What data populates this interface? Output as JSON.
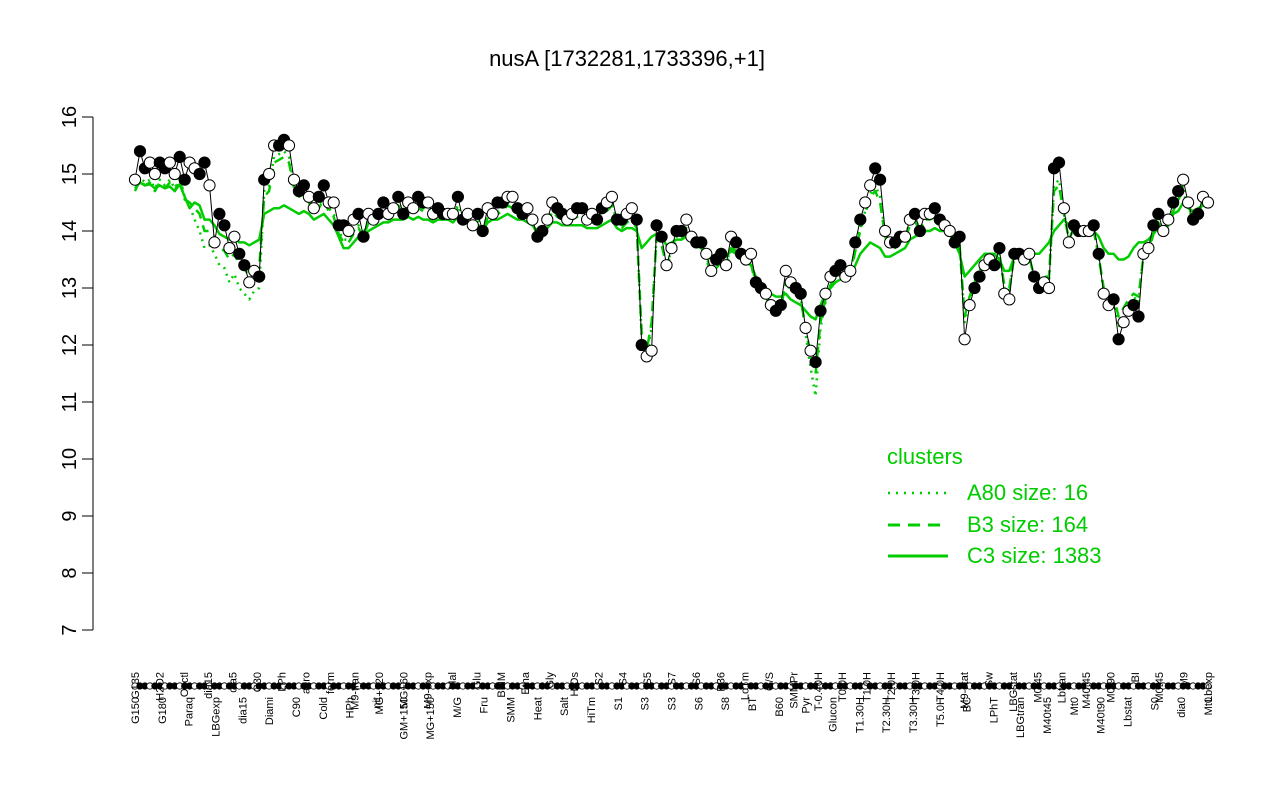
{
  "chart_data": {
    "type": "line",
    "title": "nusA [1732281,1733396,+1]",
    "xlabel": "",
    "ylabel": "",
    "ylim": [
      7,
      16
    ],
    "yticks": [
      7,
      8,
      9,
      10,
      11,
      12,
      13,
      14,
      15,
      16
    ],
    "grid": false,
    "legend": {
      "position": "right",
      "title": "clusters",
      "entries": [
        {
          "label": "A80 size: 16",
          "style": "dotted",
          "color": "#00cc00"
        },
        {
          "label": "B3 size: 164",
          "style": "dashed",
          "color": "#00cc00"
        },
        {
          "label": "C3 size: 1383",
          "style": "solid",
          "color": "#00cc00"
        }
      ]
    },
    "x_labels_bottom": [
      "G150",
      "G180",
      "Paraq",
      "LBGexp",
      "dia15",
      "Diami",
      "C90",
      "Cold",
      "HPh",
      "nit",
      "GM+150",
      "MG+150",
      "M/G",
      "Fru",
      "SMM",
      "Heat",
      "Salt",
      "HiTm",
      "S1",
      "S3",
      "S3",
      "S6",
      "S8",
      "BT",
      "B60",
      "Pyr",
      "Glucon",
      "T1.30H",
      "T2.30H",
      "T3.30H",
      "T5.0H",
      "BC",
      "LPhT",
      "LBGtran",
      "M40t45",
      "Mt0",
      "M40t90",
      "Lbstat",
      "S0",
      "dia0",
      "Mt0"
    ],
    "x_labels_top": [
      "G135",
      "H2O2",
      "Oxctl",
      "dia15",
      "dia5",
      "C30",
      "LPh",
      "aero",
      "ferm",
      "M9-tran",
      "MG+120",
      "MG+60",
      "M9-exp",
      "Mal",
      "Glu",
      "BMM",
      "Etha",
      "Gly",
      "HiOs",
      "S2",
      "S4",
      "S5",
      "S7",
      "S6",
      "B36",
      "LoTm",
      "G/S",
      "SMMPr",
      "T-0.40H",
      "T0.0H",
      "T1.0H",
      "T2.0H",
      "T3.0H",
      "T4.0H",
      "M9-stat",
      "Sw",
      "LBGstat",
      "M0t45",
      "Lbtran",
      "M40t45",
      "M0t90",
      "BI",
      "M0t45",
      "M9",
      "Lbexp"
    ],
    "series": [
      {
        "role": "observed",
        "color": "#000000",
        "values": [
          14.9,
          15.4,
          15.1,
          15.2,
          15.0,
          15.2,
          15.1,
          15.2,
          15.0,
          15.3,
          14.9,
          15.2,
          15.1,
          15.0,
          15.2,
          14.8,
          13.8,
          14.3,
          14.1,
          13.7,
          13.9,
          13.6,
          13.4,
          13.1,
          13.3,
          13.2,
          14.9,
          15.0,
          15.5,
          15.5,
          15.6,
          15.5,
          14.9,
          14.7,
          14.8,
          14.6,
          14.4,
          14.6,
          14.8,
          14.5,
          14.5,
          14.1,
          14.1,
          14.0,
          14.2,
          14.3,
          13.9,
          14.3,
          14.2,
          14.3,
          14.5,
          14.3,
          14.4,
          14.6,
          14.3,
          14.5,
          14.4,
          14.6,
          14.5,
          14.5,
          14.3,
          14.4,
          14.3,
          14.3,
          14.3,
          14.6,
          14.2,
          14.3,
          14.1,
          14.3,
          14.0,
          14.4,
          14.3,
          14.5,
          14.5,
          14.6,
          14.6,
          14.4,
          14.3,
          14.4,
          14.2,
          13.9,
          14.0,
          14.2,
          14.5,
          14.4,
          14.3,
          14.2,
          14.3,
          14.4,
          14.4,
          14.2,
          14.3,
          14.2,
          14.4,
          14.5,
          14.6,
          14.2,
          14.2,
          14.3,
          14.4,
          14.2,
          12.0,
          11.8,
          11.9,
          14.1,
          13.9,
          13.4,
          13.7,
          14.0,
          14.0,
          14.2,
          13.9,
          13.8,
          13.8,
          13.6,
          13.3,
          13.5,
          13.6,
          13.4,
          13.9,
          13.8,
          13.6,
          13.5,
          13.6,
          13.1,
          13.0,
          12.9,
          12.7,
          12.6,
          12.7,
          13.3,
          13.1,
          13.0,
          12.9,
          12.3,
          11.9,
          11.7,
          12.6,
          12.9,
          13.2,
          13.3,
          13.4,
          13.2,
          13.3,
          13.8,
          14.2,
          14.5,
          14.8,
          15.1,
          14.9,
          14.0,
          13.8,
          13.8,
          13.9,
          13.9,
          14.2,
          14.3,
          14.0,
          14.3,
          14.3,
          14.4,
          14.2,
          14.1,
          14.0,
          13.8,
          13.9,
          12.1,
          12.7,
          13.0,
          13.2,
          13.4,
          13.5,
          13.4,
          13.7,
          12.9,
          12.8,
          13.6,
          13.6,
          13.5,
          13.6,
          13.2,
          13.0,
          13.1,
          13.0,
          15.1,
          15.2,
          14.4,
          13.8,
          14.1,
          14.0,
          14.0,
          14.0,
          14.1,
          13.6,
          12.9,
          12.7,
          12.8,
          12.1,
          12.4,
          12.6,
          12.7,
          12.5,
          13.6,
          13.7,
          14.1,
          14.3,
          14.0,
          14.2,
          14.5,
          14.7,
          14.9,
          14.5,
          14.2,
          14.3,
          14.6,
          14.5
        ]
      },
      {
        "role": "C3",
        "style": "solid",
        "color": "#00cc00",
        "values": [
          14.75,
          14.85,
          14.8,
          14.82,
          14.75,
          14.8,
          14.75,
          14.78,
          14.7,
          14.82,
          14.6,
          14.4,
          14.5,
          14.45,
          14.2,
          14.2,
          14.1,
          13.95,
          13.9,
          13.85,
          13.9,
          13.8,
          13.8,
          13.75,
          13.8,
          13.85,
          14.3,
          14.35,
          14.4,
          14.4,
          14.45,
          14.4,
          14.35,
          14.3,
          14.35,
          14.3,
          14.2,
          14.25,
          14.3,
          14.2,
          14.1,
          13.9,
          13.7,
          13.7,
          13.8,
          13.9,
          13.9,
          14.0,
          14.05,
          14.1,
          14.15,
          14.15,
          14.2,
          14.2,
          14.2,
          14.25,
          14.2,
          14.25,
          14.2,
          14.2,
          14.15,
          14.2,
          14.2,
          14.2,
          14.15,
          14.25,
          14.15,
          14.15,
          14.1,
          14.1,
          14.0,
          14.15,
          14.2,
          14.2,
          14.25,
          14.3,
          14.25,
          14.2,
          14.2,
          14.15,
          14.1,
          14.0,
          14.0,
          14.05,
          14.15,
          14.15,
          14.1,
          14.1,
          14.1,
          14.1,
          14.1,
          14.05,
          14.05,
          14.05,
          14.1,
          14.15,
          14.2,
          14.05,
          14.0,
          14.05,
          14.05,
          14.0,
          13.7,
          13.8,
          13.9,
          13.95,
          13.9,
          13.75,
          13.8,
          13.85,
          13.85,
          13.9,
          13.8,
          13.75,
          13.7,
          13.6,
          13.5,
          13.55,
          13.6,
          13.55,
          13.65,
          13.6,
          13.5,
          13.45,
          13.4,
          13.2,
          13.1,
          13.0,
          12.9,
          12.85,
          12.85,
          12.9,
          12.8,
          12.75,
          12.7,
          12.6,
          12.5,
          12.45,
          12.7,
          12.9,
          13.0,
          13.1,
          13.15,
          13.15,
          13.2,
          13.4,
          13.6,
          13.7,
          13.8,
          13.75,
          13.7,
          13.55,
          13.55,
          13.6,
          13.65,
          13.7,
          13.85,
          13.9,
          13.95,
          14.0,
          14.0,
          14.05,
          14.0,
          14.0,
          13.95,
          13.8,
          13.6,
          13.2,
          13.3,
          13.4,
          13.5,
          13.6,
          13.6,
          13.6,
          13.5,
          13.3,
          13.3,
          13.55,
          13.6,
          13.6,
          13.65,
          13.6,
          13.6,
          13.7,
          13.8,
          14.0,
          14.1,
          14.2,
          14.1,
          14.05,
          14.0,
          14.0,
          13.95,
          14.0,
          13.9,
          13.7,
          13.6,
          13.6,
          13.5,
          13.5,
          13.55,
          13.7,
          13.8,
          13.8,
          13.85,
          13.95,
          14.05,
          14.0,
          14.1,
          14.3,
          14.35,
          14.5,
          14.4,
          14.35,
          14.4,
          14.45,
          14.45
        ]
      },
      {
        "role": "B3",
        "style": "dashed",
        "color": "#00cc00",
        "values": [
          14.7,
          14.9,
          14.8,
          14.85,
          14.7,
          14.85,
          14.75,
          14.85,
          14.7,
          14.9,
          14.55,
          14.5,
          14.4,
          14.3,
          14.0,
          14.0,
          13.9,
          13.7,
          13.65,
          13.5,
          13.6,
          13.4,
          13.35,
          13.2,
          13.3,
          13.35,
          14.6,
          14.7,
          15.2,
          15.25,
          15.3,
          15.2,
          14.75,
          14.6,
          14.65,
          14.5,
          14.3,
          14.4,
          14.55,
          14.35,
          14.25,
          13.95,
          13.8,
          13.8,
          13.95,
          14.05,
          13.9,
          14.15,
          14.15,
          14.2,
          14.35,
          14.2,
          14.3,
          14.45,
          14.25,
          14.35,
          14.3,
          14.4,
          14.35,
          14.35,
          14.2,
          14.3,
          14.25,
          14.25,
          14.2,
          14.4,
          14.15,
          14.2,
          14.05,
          14.15,
          13.95,
          14.25,
          14.2,
          14.3,
          14.35,
          14.45,
          14.4,
          14.3,
          14.25,
          14.25,
          14.15,
          13.9,
          13.95,
          14.1,
          14.35,
          14.25,
          14.2,
          14.15,
          14.2,
          14.25,
          14.3,
          14.15,
          14.2,
          14.15,
          14.3,
          14.35,
          14.45,
          14.1,
          14.05,
          14.15,
          14.2,
          14.05,
          12.2,
          11.9,
          12.4,
          13.9,
          13.75,
          13.4,
          13.6,
          13.85,
          13.85,
          14.0,
          13.8,
          13.75,
          13.7,
          13.5,
          13.25,
          13.35,
          13.45,
          13.35,
          13.7,
          13.65,
          13.5,
          13.4,
          13.45,
          13.0,
          12.95,
          12.85,
          12.65,
          12.6,
          12.65,
          13.1,
          12.95,
          12.9,
          12.8,
          12.3,
          11.8,
          11.5,
          12.4,
          12.8,
          13.05,
          13.15,
          13.25,
          13.15,
          13.2,
          13.65,
          14.0,
          14.3,
          14.6,
          14.7,
          14.5,
          13.9,
          13.7,
          13.7,
          13.8,
          13.85,
          14.1,
          14.2,
          13.95,
          14.2,
          14.2,
          14.25,
          14.1,
          14.0,
          13.95,
          13.75,
          13.75,
          12.5,
          12.85,
          13.1,
          13.3,
          13.45,
          13.5,
          13.45,
          13.6,
          13.05,
          13.0,
          13.55,
          13.55,
          13.5,
          13.55,
          13.2,
          13.1,
          13.2,
          13.2,
          14.7,
          14.8,
          14.3,
          13.85,
          14.05,
          13.95,
          13.95,
          13.95,
          14.0,
          13.55,
          13.0,
          12.85,
          12.85,
          12.5,
          12.65,
          12.8,
          12.9,
          12.85,
          13.55,
          13.6,
          13.95,
          14.15,
          13.95,
          14.1,
          14.35,
          14.55,
          14.7,
          14.4,
          14.2,
          14.3,
          14.5,
          14.45
        ]
      },
      {
        "role": "A80",
        "style": "dotted",
        "color": "#00cc00",
        "values": [
          14.8,
          14.95,
          14.85,
          14.9,
          14.75,
          14.9,
          14.8,
          14.9,
          14.75,
          14.95,
          14.6,
          14.45,
          14.2,
          14.0,
          13.7,
          13.75,
          13.6,
          13.4,
          13.35,
          13.1,
          13.25,
          13.0,
          12.9,
          12.8,
          12.95,
          13.0,
          14.7,
          14.8,
          15.3,
          15.35,
          15.4,
          15.3,
          14.8,
          14.65,
          14.7,
          14.55,
          14.35,
          14.45,
          14.6,
          14.4,
          14.3,
          14.0,
          13.85,
          13.85,
          14.0,
          14.1,
          13.95,
          14.2,
          14.2,
          14.25,
          14.4,
          14.25,
          14.35,
          14.5,
          14.3,
          14.4,
          14.35,
          14.45,
          14.4,
          14.4,
          14.25,
          14.35,
          14.3,
          14.3,
          14.25,
          14.45,
          14.2,
          14.25,
          14.1,
          14.2,
          14.0,
          14.3,
          14.25,
          14.35,
          14.4,
          14.5,
          14.45,
          14.35,
          14.3,
          14.3,
          14.2,
          13.95,
          14.0,
          14.15,
          14.4,
          14.3,
          14.25,
          14.2,
          14.25,
          14.3,
          14.35,
          14.2,
          14.25,
          14.2,
          14.35,
          14.4,
          14.5,
          14.15,
          14.1,
          14.2,
          14.25,
          14.1,
          12.1,
          11.8,
          12.3,
          13.95,
          13.8,
          13.4,
          13.65,
          13.9,
          13.9,
          14.05,
          13.85,
          13.8,
          13.75,
          13.55,
          13.3,
          13.4,
          13.5,
          13.4,
          13.75,
          13.7,
          13.55,
          13.45,
          13.5,
          13.05,
          12.95,
          12.85,
          12.65,
          12.55,
          12.6,
          13.15,
          13.0,
          12.95,
          12.85,
          12.2,
          11.6,
          11.1,
          12.3,
          12.75,
          13.05,
          13.2,
          13.3,
          13.2,
          13.25,
          13.7,
          14.05,
          14.35,
          14.65,
          14.8,
          14.6,
          13.95,
          13.75,
          13.75,
          13.85,
          13.9,
          14.15,
          14.25,
          14.0,
          14.25,
          14.25,
          14.3,
          14.15,
          14.05,
          14.0,
          13.8,
          13.8,
          12.4,
          12.8,
          13.05,
          13.25,
          13.4,
          13.45,
          13.4,
          13.6,
          13.0,
          12.95,
          13.55,
          13.55,
          13.5,
          13.55,
          13.2,
          13.05,
          13.15,
          13.1,
          14.8,
          14.9,
          14.35,
          13.85,
          14.05,
          13.95,
          13.95,
          13.95,
          14.05,
          13.55,
          12.95,
          12.8,
          12.8,
          12.3,
          12.55,
          12.7,
          12.85,
          12.75,
          13.6,
          13.65,
          14.0,
          14.2,
          14.0,
          14.15,
          14.4,
          14.6,
          14.8,
          14.45,
          14.2,
          14.3,
          14.55,
          14.5
        ]
      }
    ]
  }
}
